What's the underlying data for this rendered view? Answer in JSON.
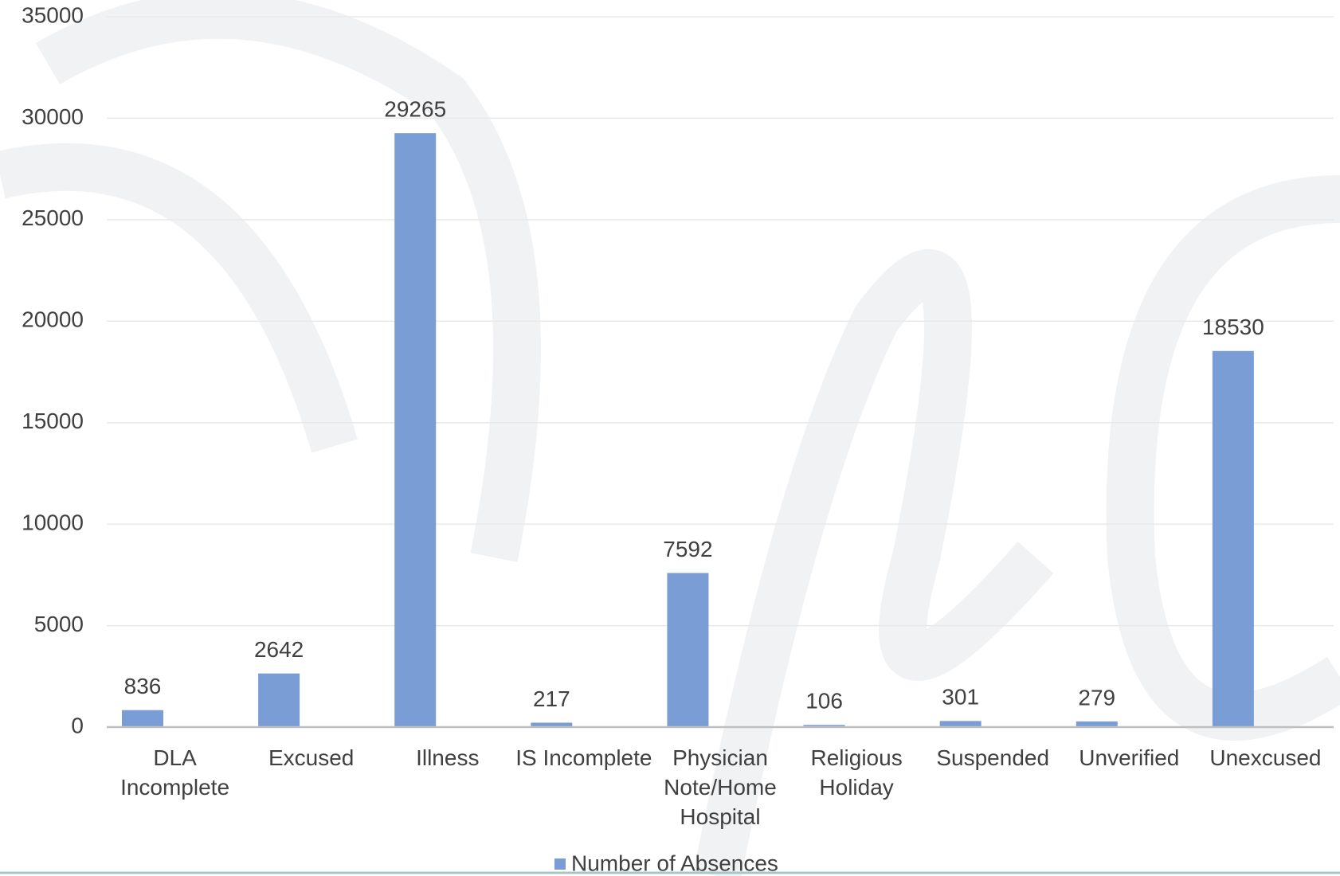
{
  "chart_data": {
    "type": "bar",
    "categories": [
      "DLA Incomplete",
      "Excused",
      "Illness",
      "IS Incomplete",
      "Physician Note/Home Hospital",
      "Religious Holiday",
      "Suspended",
      "Unverified",
      "Unexcused"
    ],
    "series": [
      {
        "name": "Number of Absences",
        "color": "#7b9dd6",
        "values": [
          836,
          2642,
          29265,
          217,
          7592,
          106,
          301,
          279,
          18530
        ]
      }
    ],
    "ylim": [
      0,
      35000
    ],
    "yticks": [
      0,
      5000,
      10000,
      15000,
      20000,
      25000,
      30000,
      35000
    ],
    "grid": true,
    "legend": "bottom"
  }
}
